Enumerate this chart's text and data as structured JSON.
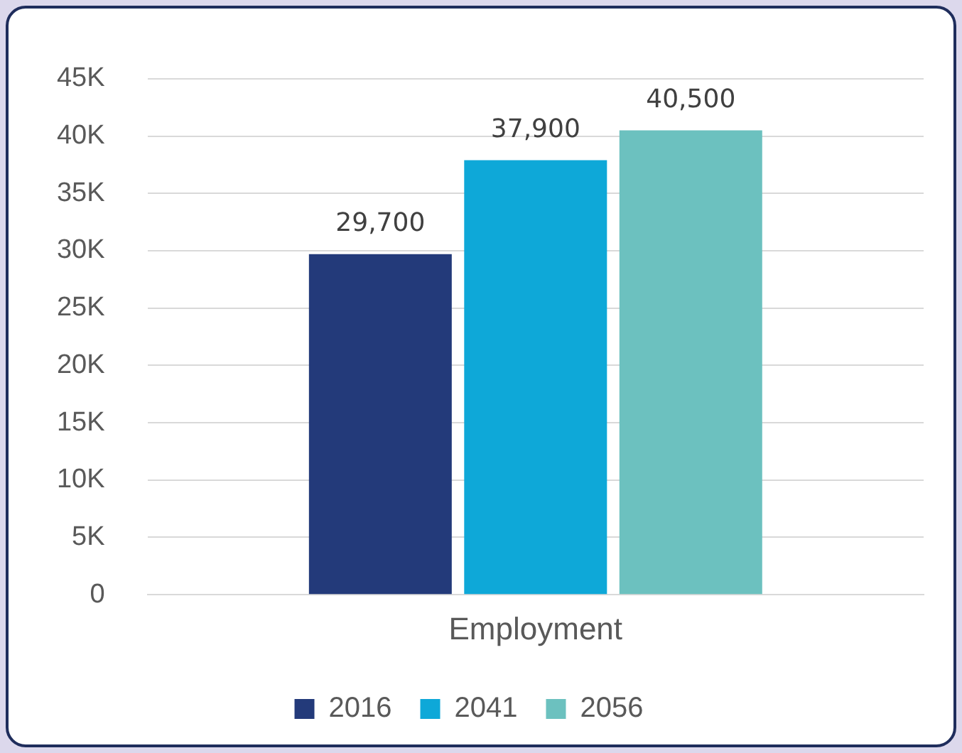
{
  "chart_data": {
    "type": "bar",
    "categories": [
      "Employment"
    ],
    "series": [
      {
        "name": "2016",
        "color": "#233a7a",
        "values": [
          29700
        ],
        "value_labels": [
          "29,700"
        ]
      },
      {
        "name": "2041",
        "color": "#0ea8d8",
        "values": [
          37900
        ],
        "value_labels": [
          "37,900"
        ]
      },
      {
        "name": "2056",
        "color": "#6cc1bf",
        "values": [
          40500
        ],
        "value_labels": [
          "40,500"
        ]
      }
    ],
    "ylim": [
      0,
      45000
    ],
    "yticks": [
      0,
      {
        "value": 5000,
        "label": "5K"
      },
      {
        "value": 10000,
        "label": "10K"
      },
      {
        "value": 15000,
        "label": "15K"
      },
      {
        "value": 20000,
        "label": "20K"
      },
      {
        "value": 25000,
        "label": "25K"
      },
      {
        "value": 30000,
        "label": "30K"
      },
      {
        "value": 35000,
        "label": "35K"
      },
      {
        "value": 40000,
        "label": "40K"
      },
      {
        "value": 45000,
        "label": "45K"
      }
    ],
    "grid": "y",
    "legend": "bottom"
  }
}
